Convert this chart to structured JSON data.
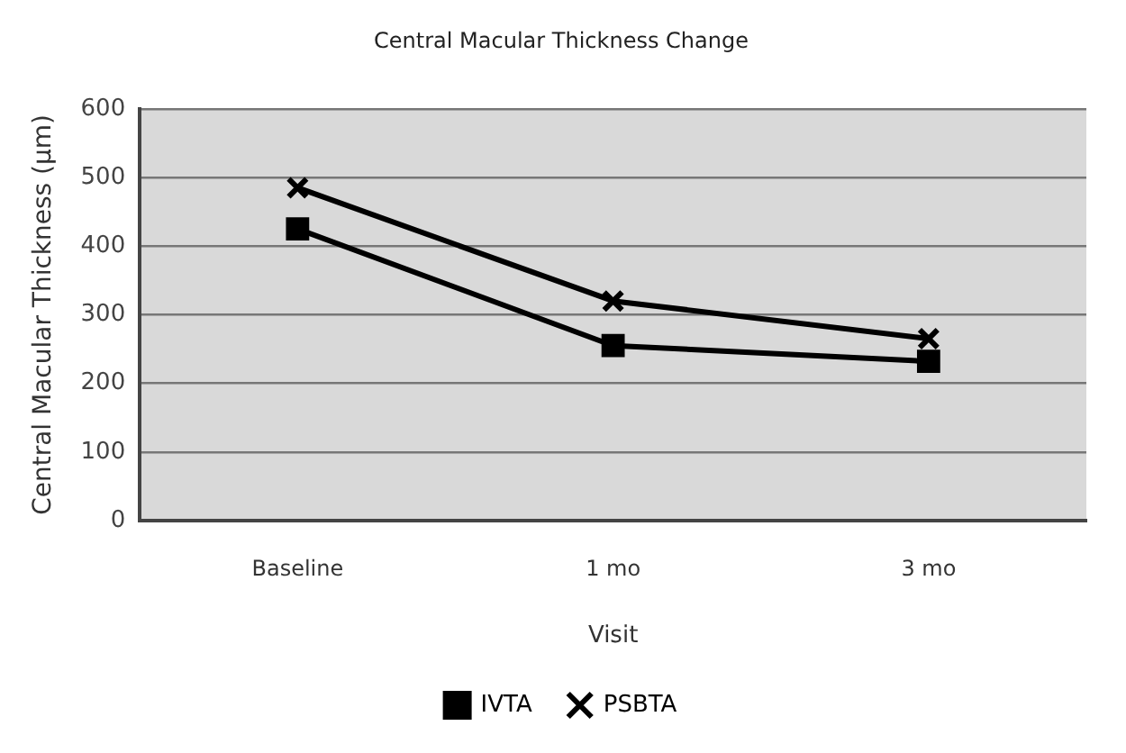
{
  "chart_data": {
    "type": "line",
    "title": "Central Macular Thickness Change",
    "xlabel": "Visit",
    "ylabel": "Central Macular Thickness (μm)",
    "categories": [
      "Baseline",
      "1 mo",
      "3 mo"
    ],
    "series": [
      {
        "name": "IVTA",
        "color": "#000000",
        "values": [
          425,
          255,
          232
        ],
        "marker": "square"
      },
      {
        "name": "PSBTA",
        "color": "#000000",
        "values": [
          485,
          320,
          265
        ],
        "marker": "cross"
      }
    ],
    "ylim": [
      0,
      600
    ],
    "yticks": [
      0,
      100,
      200,
      300,
      400,
      500,
      600
    ],
    "grid": "y",
    "legend": "bottom",
    "line_style": "solid"
  }
}
